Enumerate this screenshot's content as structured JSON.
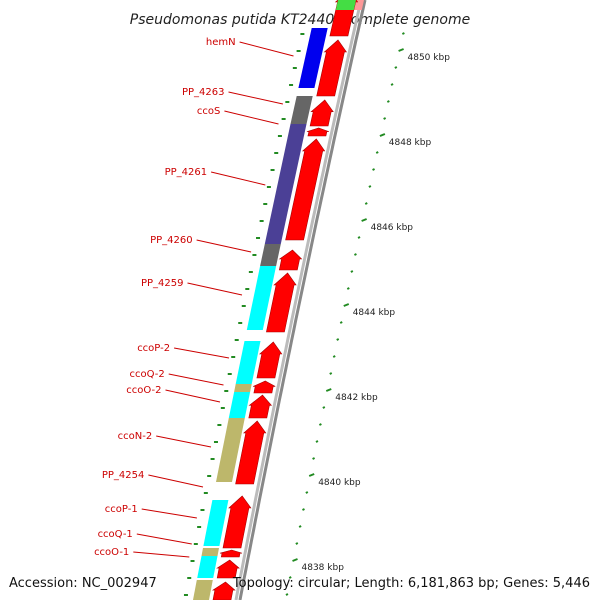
{
  "title": "Pseudomonas putida KT2440, complete genome",
  "accession": "Accession: NC_002947",
  "summary": "Topology: circular; Length: 6,181,863 bp; Genes: 5,446",
  "scale_labels": [
    "4850 kbp",
    "4848 kbp",
    "4846 kbp",
    "4844 kbp",
    "4842 kbp",
    "4840 kbp",
    "4838 kbp"
  ],
  "gene_labels": [
    "hemN",
    "PP_4263",
    "ccoS",
    "PP_4261",
    "PP_4260",
    "PP_4259",
    "ccoP-2",
    "ccoQ-2",
    "ccoO-2",
    "ccoN-2",
    "PP_4254",
    "ccoP-1",
    "ccoQ-1",
    "ccoO-1"
  ],
  "colors": {
    "gene_red": "#ff0000",
    "backbone_gray": "#888888",
    "label_red": "#cc0000",
    "tick_green": "#228b22",
    "cog_blue": "#0000ee",
    "cog_darkgray": "#666666",
    "cog_slateblue": "#4b4096",
    "cog_cyan": "#00ffff",
    "cog_khaki": "#bdb76b"
  }
}
